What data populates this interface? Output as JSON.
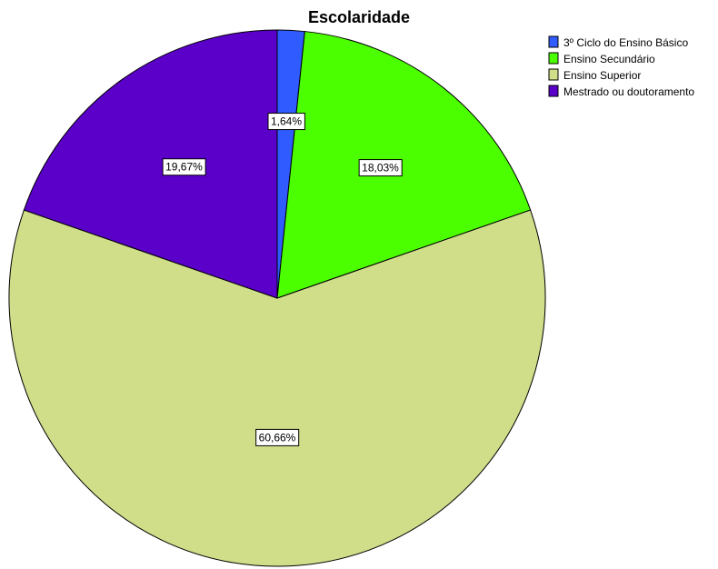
{
  "chart_data": {
    "type": "pie",
    "title": "Escolaridade",
    "categories": [
      "3º Ciclo do Ensino Básico",
      "Ensino Secundário",
      "Ensino Superior",
      "Mestrado ou doutoramento"
    ],
    "values": [
      1.64,
      18.03,
      60.66,
      19.67
    ],
    "labels": [
      "1,64%",
      "18,03%",
      "60,66%",
      "19,67%"
    ],
    "colors": [
      "#2f5bff",
      "#4cff00",
      "#d0de8a",
      "#5a00c8"
    ],
    "start_angle": "12 o'clock",
    "direction": "clockwise",
    "legend_position": "top-right"
  }
}
